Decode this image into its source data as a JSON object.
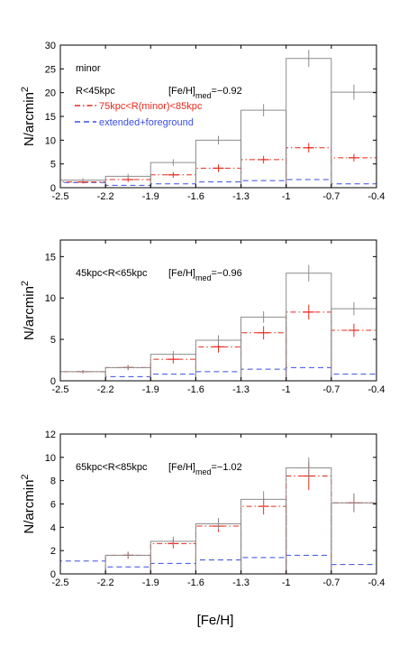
{
  "figure": {
    "xlabel": "[Fe/H]",
    "ylabel_base": "N/arcmin",
    "ylabel_sup": "2",
    "colors": {
      "gray": "#8c8c8c",
      "red": "#e8291c",
      "blue": "#3a4fe0",
      "axis": "#000000"
    }
  },
  "chart_data": [
    {
      "type": "bar",
      "panel": "top",
      "xlim": [
        -2.5,
        -0.4
      ],
      "ylim": [
        0,
        30
      ],
      "xticks": [
        "-2.5",
        "-2.2",
        "-1.9",
        "-1.6",
        "-1.3",
        "-1",
        "-0.7",
        "-0.4"
      ],
      "yticks": [
        0,
        5,
        10,
        15,
        20,
        25,
        30
      ],
      "bin_edges": [
        -2.5,
        -2.2,
        -1.9,
        -1.6,
        -1.3,
        -1.0,
        -0.7,
        -0.4
      ],
      "series": [
        {
          "name": "R<45kpc",
          "style": "gray-solid",
          "values": [
            1.6,
            2.4,
            5.3,
            10.0,
            16.3,
            27.2,
            20.1
          ],
          "errors": [
            0.4,
            0.5,
            0.7,
            0.9,
            1.3,
            1.8,
            1.6
          ]
        },
        {
          "name": "75kpc<R(minor)<85kpc",
          "style": "red-dashdot",
          "values": [
            1.2,
            1.7,
            2.7,
            4.1,
            5.9,
            8.4,
            6.3
          ],
          "errors": [
            0.3,
            0.5,
            0.6,
            0.8,
            0.8,
            1.0,
            0.8
          ]
        },
        {
          "name": "extended+foreground",
          "style": "blue-dash",
          "values": [
            1.1,
            0.5,
            0.8,
            1.2,
            1.5,
            1.7,
            0.8
          ]
        }
      ],
      "annotations": {
        "title": "minor",
        "region": "R<45kpc",
        "med_prefix": "[Fe/H]",
        "med_sub": "med",
        "med_value": "=−0.92"
      },
      "legend": {
        "position": "top-left"
      }
    },
    {
      "type": "bar",
      "panel": "middle",
      "xlim": [
        -2.5,
        -0.4
      ],
      "ylim": [
        0,
        17
      ],
      "xticks": [
        "-2.5",
        "-2.2",
        "-1.9",
        "-1.6",
        "-1.3",
        "-1",
        "-0.7",
        "-0.4"
      ],
      "yticks": [
        0,
        5,
        10,
        15
      ],
      "bin_edges": [
        -2.5,
        -2.2,
        -1.9,
        -1.6,
        -1.3,
        -1.0,
        -0.7,
        -0.4
      ],
      "series": [
        {
          "style": "gray-solid",
          "values": [
            1.1,
            1.6,
            3.2,
            4.9,
            7.7,
            13.0,
            8.7
          ],
          "errors": [
            0.2,
            0.3,
            0.4,
            0.6,
            0.7,
            1.0,
            0.8
          ]
        },
        {
          "style": "red-dashdot",
          "values": [
            1.1,
            1.6,
            2.6,
            4.1,
            5.8,
            8.3,
            6.1
          ],
          "errors": [
            0.2,
            0.3,
            0.5,
            0.7,
            0.8,
            0.9,
            0.8
          ]
        },
        {
          "style": "blue-dash",
          "values": [
            0.0,
            0.5,
            0.8,
            1.1,
            1.4,
            1.6,
            0.8
          ]
        }
      ],
      "annotations": {
        "region": "45kpc<R<65kpc",
        "med_prefix": "[Fe/H]",
        "med_sub": "med",
        "med_value": "=−0.96"
      }
    },
    {
      "type": "bar",
      "panel": "bottom",
      "xlim": [
        -2.5,
        -0.4
      ],
      "ylim": [
        0,
        12
      ],
      "xticks": [
        "-2.5",
        "-2.2",
        "-1.9",
        "-1.6",
        "-1.3",
        "-1",
        "-0.7",
        "-0.4"
      ],
      "yticks": [
        0,
        2,
        4,
        6,
        8,
        10,
        12
      ],
      "bin_edges": [
        -2.5,
        -2.2,
        -1.9,
        -1.6,
        -1.3,
        -1.0,
        -0.7,
        -0.4
      ],
      "series": [
        {
          "style": "gray-solid",
          "values": [
            0.0,
            1.6,
            2.8,
            4.3,
            6.4,
            9.1,
            6.1
          ],
          "errors": [
            0.0,
            0.3,
            0.4,
            0.5,
            0.7,
            0.9,
            0.8
          ]
        },
        {
          "style": "red-dashdot",
          "values": [
            0.0,
            1.6,
            2.6,
            4.1,
            5.8,
            8.4,
            6.1
          ],
          "errors": [
            0.0,
            0.3,
            0.4,
            0.5,
            0.7,
            1.2,
            0.8
          ]
        },
        {
          "style": "blue-dash",
          "values": [
            1.1,
            0.6,
            0.9,
            1.2,
            1.4,
            1.6,
            0.8
          ]
        }
      ],
      "annotations": {
        "region": "65kpc<R<85kpc",
        "med_prefix": "[Fe/H]",
        "med_sub": "med",
        "med_value": "=−1.02"
      }
    }
  ]
}
